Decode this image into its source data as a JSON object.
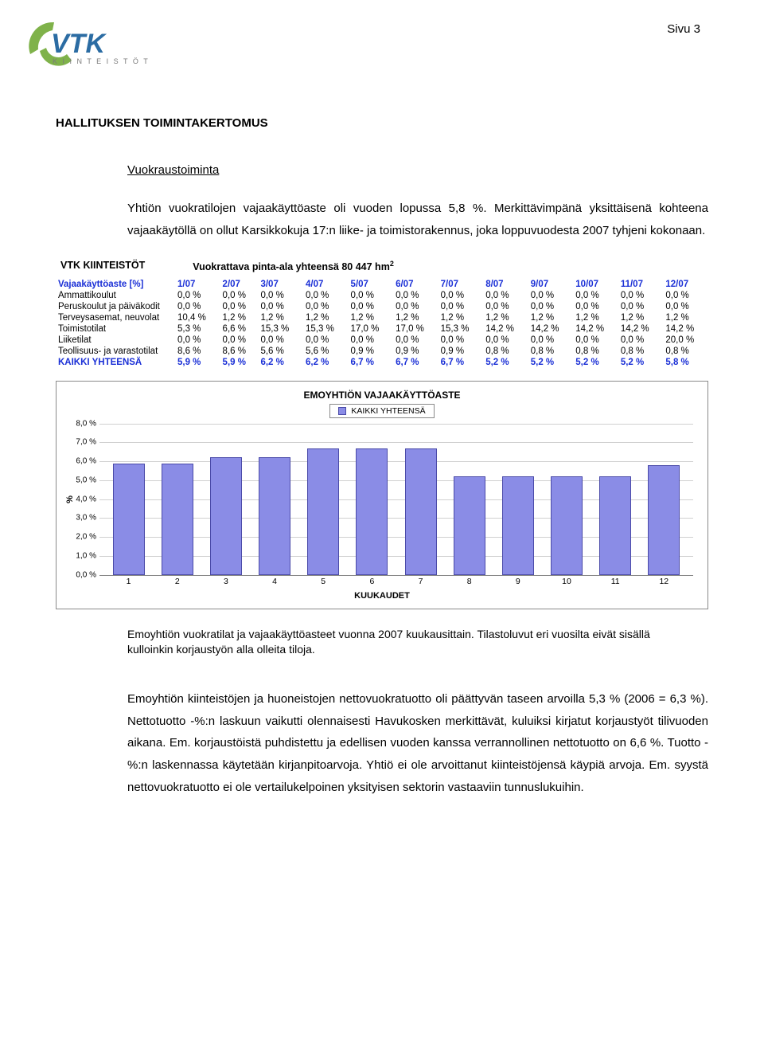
{
  "page_label": "Sivu 3",
  "logo": {
    "text_top": "VTK",
    "text_bottom": "K I I N T E I S T Ö T",
    "arc_color": "#7fb24a",
    "text_color_top": "#2b6ca3",
    "text_color_bottom": "#7a7a7a"
  },
  "heading1": "HALLITUKSEN TOIMINTAKERTOMUS",
  "heading2": "Vuokraustoiminta",
  "para1": "Yhtiön vuokratilojen vajaakäyttöaste oli vuoden lopussa 5,8 %. Merkittävimpänä yksittäisenä kohteena vajaakäytöllä on ollut Karsikkokuja 17:n liike- ja toimistorakennus, joka loppuvuodesta 2007 tyhjeni kokonaan.",
  "table": {
    "org_label": "VTK KIINTEISTÖT",
    "title": "Vuokrattava pinta-ala yhteensä 80 447 hm",
    "title_sup": "2",
    "header_first": "Vajaakäyttöaste [%]",
    "months": [
      "1/07",
      "2/07",
      "3/07",
      "4/07",
      "5/07",
      "6/07",
      "7/07",
      "8/07",
      "9/07",
      "10/07",
      "11/07",
      "12/07"
    ],
    "header_color": "#1a2fd6",
    "rows": [
      {
        "label": "Ammattikoulut",
        "values": [
          "0,0 %",
          "0,0 %",
          "0,0 %",
          "0,0 %",
          "0,0 %",
          "0,0 %",
          "0,0 %",
          "0,0 %",
          "0,0 %",
          "0,0 %",
          "0,0 %",
          "0,0 %"
        ]
      },
      {
        "label": "Peruskoulut ja päiväkodit",
        "values": [
          "0,0 %",
          "0,0 %",
          "0,0 %",
          "0,0 %",
          "0,0 %",
          "0,0 %",
          "0,0 %",
          "0,0 %",
          "0,0 %",
          "0,0 %",
          "0,0 %",
          "0,0 %"
        ]
      },
      {
        "label": "Terveysasemat, neuvolat",
        "values": [
          "10,4 %",
          "1,2 %",
          "1,2 %",
          "1,2 %",
          "1,2 %",
          "1,2 %",
          "1,2 %",
          "1,2 %",
          "1,2 %",
          "1,2 %",
          "1,2 %",
          "1,2 %"
        ]
      },
      {
        "label": "Toimistotilat",
        "values": [
          "5,3 %",
          "6,6 %",
          "15,3 %",
          "15,3 %",
          "17,0 %",
          "17,0 %",
          "15,3 %",
          "14,2 %",
          "14,2 %",
          "14,2 %",
          "14,2 %",
          "14,2 %"
        ]
      },
      {
        "label": "Liiketilat",
        "values": [
          "0,0 %",
          "0,0 %",
          "0,0 %",
          "0,0 %",
          "0,0 %",
          "0,0 %",
          "0,0 %",
          "0,0 %",
          "0,0 %",
          "0,0 %",
          "0,0 %",
          "20,0 %"
        ]
      },
      {
        "label": "Teollisuus- ja varastotilat",
        "values": [
          "8,6 %",
          "8,6 %",
          "5,6 %",
          "5,6 %",
          "0,9 %",
          "0,9 %",
          "0,9 %",
          "0,8 %",
          "0,8 %",
          "0,8 %",
          "0,8 %",
          "0,8 %"
        ]
      }
    ],
    "total_label": "KAIKKI YHTEENSÄ",
    "total_values": [
      "5,9 %",
      "5,9 %",
      "6,2 %",
      "6,2 %",
      "6,7 %",
      "6,7 %",
      "6,7 %",
      "5,2 %",
      "5,2 %",
      "5,2 %",
      "5,2 %",
      "5,8 %"
    ],
    "total_color": "#1a2fd6"
  },
  "chart": {
    "title": "EMOYHTIÖN VAJAAKÄYTTÖASTE",
    "legend_label": "KAIKKI YHTEENSÄ",
    "y_unit_label": "%",
    "ylim": [
      0,
      8
    ],
    "ytick_step": 1,
    "yticks": [
      "0,0 %",
      "1,0 %",
      "2,0 %",
      "3,0 %",
      "4,0 %",
      "5,0 %",
      "6,0 %",
      "7,0 %",
      "8,0 %"
    ],
    "categories": [
      "1",
      "2",
      "3",
      "4",
      "5",
      "6",
      "7",
      "8",
      "9",
      "10",
      "11",
      "12"
    ],
    "values": [
      5.9,
      5.9,
      6.2,
      6.2,
      6.7,
      6.7,
      6.7,
      5.2,
      5.2,
      5.2,
      5.2,
      5.8
    ],
    "bar_color": "#8a8ce6",
    "bar_border": "#4a4aa8",
    "grid_color": "#d0d0d0",
    "x_axis_title": "KUUKAUDET"
  },
  "caption": "Emoyhtiön vuokratilat ja vajaakäyttöasteet vuonna 2007 kuukausittain. Tilastoluvut eri vuosilta eivät sisällä kulloinkin korjaustyön alla olleita tiloja.",
  "para2": "Emoyhtiön kiinteistöjen ja huoneistojen nettovuokratuotto oli päättyvän taseen arvoilla 5,3 % (2006 = 6,3 %). Nettotuotto -%:n laskuun vaikutti olennaisesti Havukosken merkittävät, kuluiksi kirjatut korjaustyöt tilivuoden aikana. Em. korjaustöistä puhdistettu ja edellisen vuoden kanssa verrannollinen nettotuotto on 6,6 %. Tuotto -%:n laskennassa käytetään kirjanpitoarvoja. Yhtiö ei ole arvoittanut kiinteistöjensä käypiä arvoja. Em. syystä nettovuokratuotto ei ole vertailukelpoinen yksityisen sektorin vastaaviin tunnuslukuihin."
}
